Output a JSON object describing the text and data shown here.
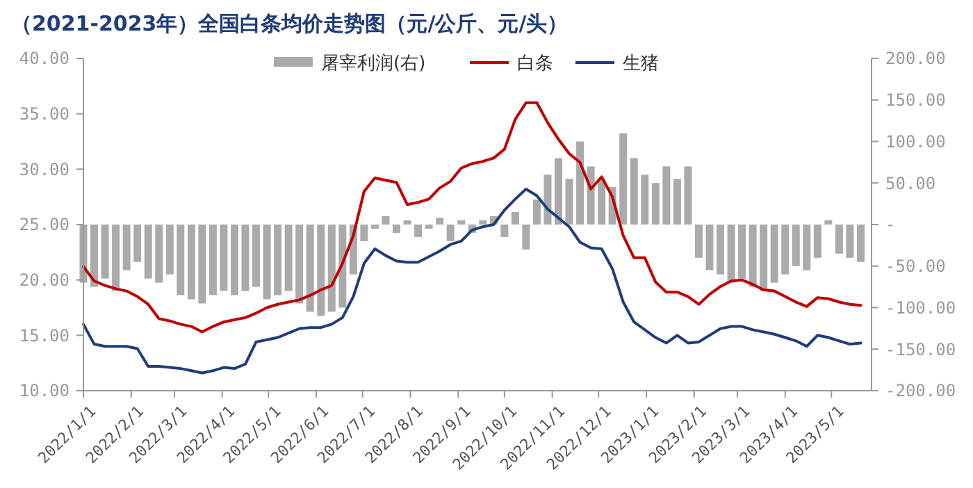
{
  "chart_data": {
    "type": "line",
    "title": "（2021-2023年）全国白条均价走势图（元/公斤、元/头）",
    "legend": "top",
    "x": [
      "2022-01-01",
      "2022-01-08",
      "2022-01-15",
      "2022-01-22",
      "2022-01-29",
      "2022-02-05",
      "2022-02-12",
      "2022-02-19",
      "2022-02-26",
      "2022-03-05",
      "2022-03-12",
      "2022-03-19",
      "2022-03-26",
      "2022-04-02",
      "2022-04-09",
      "2022-04-16",
      "2022-04-23",
      "2022-04-30",
      "2022-05-07",
      "2022-05-14",
      "2022-05-21",
      "2022-05-28",
      "2022-06-04",
      "2022-06-11",
      "2022-06-18",
      "2022-06-25",
      "2022-07-02",
      "2022-07-09",
      "2022-07-16",
      "2022-07-23",
      "2022-07-30",
      "2022-08-06",
      "2022-08-13",
      "2022-08-20",
      "2022-08-27",
      "2022-09-03",
      "2022-09-10",
      "2022-09-17",
      "2022-09-24",
      "2022-10-01",
      "2022-10-08",
      "2022-10-15",
      "2022-10-22",
      "2022-10-29",
      "2022-11-05",
      "2022-11-12",
      "2022-11-19",
      "2022-11-26",
      "2022-12-03",
      "2022-12-10",
      "2022-12-17",
      "2022-12-24",
      "2022-12-31",
      "2023-01-07",
      "2023-01-14",
      "2023-01-21",
      "2023-01-28",
      "2023-02-04",
      "2023-02-11",
      "2023-02-18",
      "2023-02-25",
      "2023-03-04",
      "2023-03-11",
      "2023-03-18",
      "2023-03-25",
      "2023-04-01",
      "2023-04-08",
      "2023-04-15",
      "2023-04-22",
      "2023-04-29",
      "2023-05-06",
      "2023-05-13",
      "2023-05-20"
    ],
    "series": [
      {
        "name": "屠宰利润(右)",
        "type": "bar",
        "axis": "y2",
        "color": "#aaaaaa",
        "values": [
          -70,
          -75,
          -65,
          -80,
          -55,
          -45,
          -65,
          -70,
          -60,
          -85,
          -90,
          -95,
          -85,
          -80,
          -85,
          -80,
          -75,
          -90,
          -85,
          -80,
          -95,
          -105,
          -110,
          -105,
          -100,
          -60,
          -20,
          -5,
          10,
          -10,
          5,
          -15,
          -5,
          8,
          -20,
          5,
          -10,
          5,
          10,
          -15,
          15,
          -30,
          30,
          60,
          80,
          55,
          100,
          70,
          55,
          45,
          110,
          80,
          60,
          50,
          70,
          55,
          70,
          -40,
          -55,
          -60,
          -70,
          -65,
          -75,
          -80,
          -70,
          -60,
          -50,
          -55,
          -40,
          5,
          -35,
          -40,
          -45
        ]
      },
      {
        "name": "白条",
        "color": "#c00000",
        "values": [
          21.2,
          19.9,
          19.5,
          19.2,
          19.0,
          18.5,
          17.8,
          16.5,
          16.3,
          16.0,
          15.8,
          15.3,
          15.8,
          16.2,
          16.4,
          16.6,
          17.0,
          17.5,
          17.8,
          18.0,
          18.2,
          18.6,
          19.1,
          19.5,
          21.5,
          24.0,
          28.0,
          29.2,
          29.0,
          28.8,
          26.8,
          27.0,
          27.3,
          28.3,
          28.9,
          30.1,
          30.5,
          30.7,
          31.0,
          31.8,
          34.5,
          36.0,
          36.0,
          34.2,
          32.7,
          31.4,
          30.6,
          28.2,
          29.3,
          27.5,
          24.0,
          22.0,
          22.0,
          19.8,
          18.9,
          18.9,
          18.5,
          17.8,
          18.7,
          19.4,
          19.9,
          20.0,
          19.6,
          19.1,
          19.0,
          18.5,
          18.0,
          17.6,
          18.4,
          18.3,
          18.0,
          17.8,
          17.7
        ]
      },
      {
        "name": "生猪",
        "color": "#1f3d7a",
        "values": [
          16.0,
          14.2,
          14.0,
          14.0,
          14.0,
          13.8,
          12.2,
          12.2,
          12.1,
          12.0,
          11.8,
          11.6,
          11.8,
          12.1,
          12.0,
          12.4,
          14.4,
          14.6,
          14.8,
          15.2,
          15.6,
          15.7,
          15.7,
          16.0,
          16.6,
          18.5,
          21.5,
          22.8,
          22.2,
          21.7,
          21.6,
          21.6,
          22.1,
          22.6,
          23.2,
          23.5,
          24.5,
          24.8,
          25.0,
          26.3,
          27.3,
          28.2,
          27.6,
          26.4,
          25.6,
          24.8,
          23.4,
          22.9,
          22.8,
          21.0,
          18.0,
          16.2,
          15.5,
          14.8,
          14.3,
          15.0,
          14.3,
          14.4,
          15.0,
          15.6,
          15.8,
          15.8,
          15.5,
          15.3,
          15.1,
          14.8,
          14.5,
          14.0,
          15.0,
          14.8,
          14.5,
          14.2,
          14.3
        ]
      }
    ],
    "xlim": [
      "2022-01-01",
      "2023-05-27"
    ],
    "xticks": [
      {
        "value": "2022-01-01",
        "label": "2022/1/1"
      },
      {
        "value": "2022-02-01",
        "label": "2022/2/1"
      },
      {
        "value": "2022-03-01",
        "label": "2022/3/1"
      },
      {
        "value": "2022-04-01",
        "label": "2022/4/1"
      },
      {
        "value": "2022-05-01",
        "label": "2022/5/1"
      },
      {
        "value": "2022-06-01",
        "label": "2022/6/1"
      },
      {
        "value": "2022-07-01",
        "label": "2022/7/1"
      },
      {
        "value": "2022-08-01",
        "label": "2022/8/1"
      },
      {
        "value": "2022-09-01",
        "label": "2022/9/1"
      },
      {
        "value": "2022-10-01",
        "label": "2022/10/1"
      },
      {
        "value": "2022-11-01",
        "label": "2022/11/1"
      },
      {
        "value": "2022-12-01",
        "label": "2022/12/1"
      },
      {
        "value": "2023-01-01",
        "label": "2023/1/1"
      },
      {
        "value": "2023-02-01",
        "label": "2023/2/1"
      },
      {
        "value": "2023-03-01",
        "label": "2023/3/1"
      },
      {
        "value": "2023-04-01",
        "label": "2023/4/1"
      },
      {
        "value": "2023-05-01",
        "label": "2023/5/1"
      }
    ],
    "ylim": [
      10,
      40
    ],
    "yticks": [
      {
        "value": 10,
        "label": "10.00"
      },
      {
        "value": 15,
        "label": "15.00"
      },
      {
        "value": 20,
        "label": "20.00"
      },
      {
        "value": 25,
        "label": "25.00"
      },
      {
        "value": 30,
        "label": "30.00"
      },
      {
        "value": 35,
        "label": "35.00"
      },
      {
        "value": 40,
        "label": "40.00"
      }
    ],
    "y2lim": [
      -200,
      200
    ],
    "y2ticks": [
      {
        "value": -200,
        "label": "-200.00"
      },
      {
        "value": -150,
        "label": "-150.00"
      },
      {
        "value": -100,
        "label": "-100.00"
      },
      {
        "value": -50,
        "label": "-50.00"
      },
      {
        "value": 0,
        "label": "-"
      },
      {
        "value": 50,
        "label": "50.00"
      },
      {
        "value": 100,
        "label": "100.00"
      },
      {
        "value": 150,
        "label": "150.00"
      },
      {
        "value": 200,
        "label": "200.00"
      }
    ],
    "grid": false
  }
}
